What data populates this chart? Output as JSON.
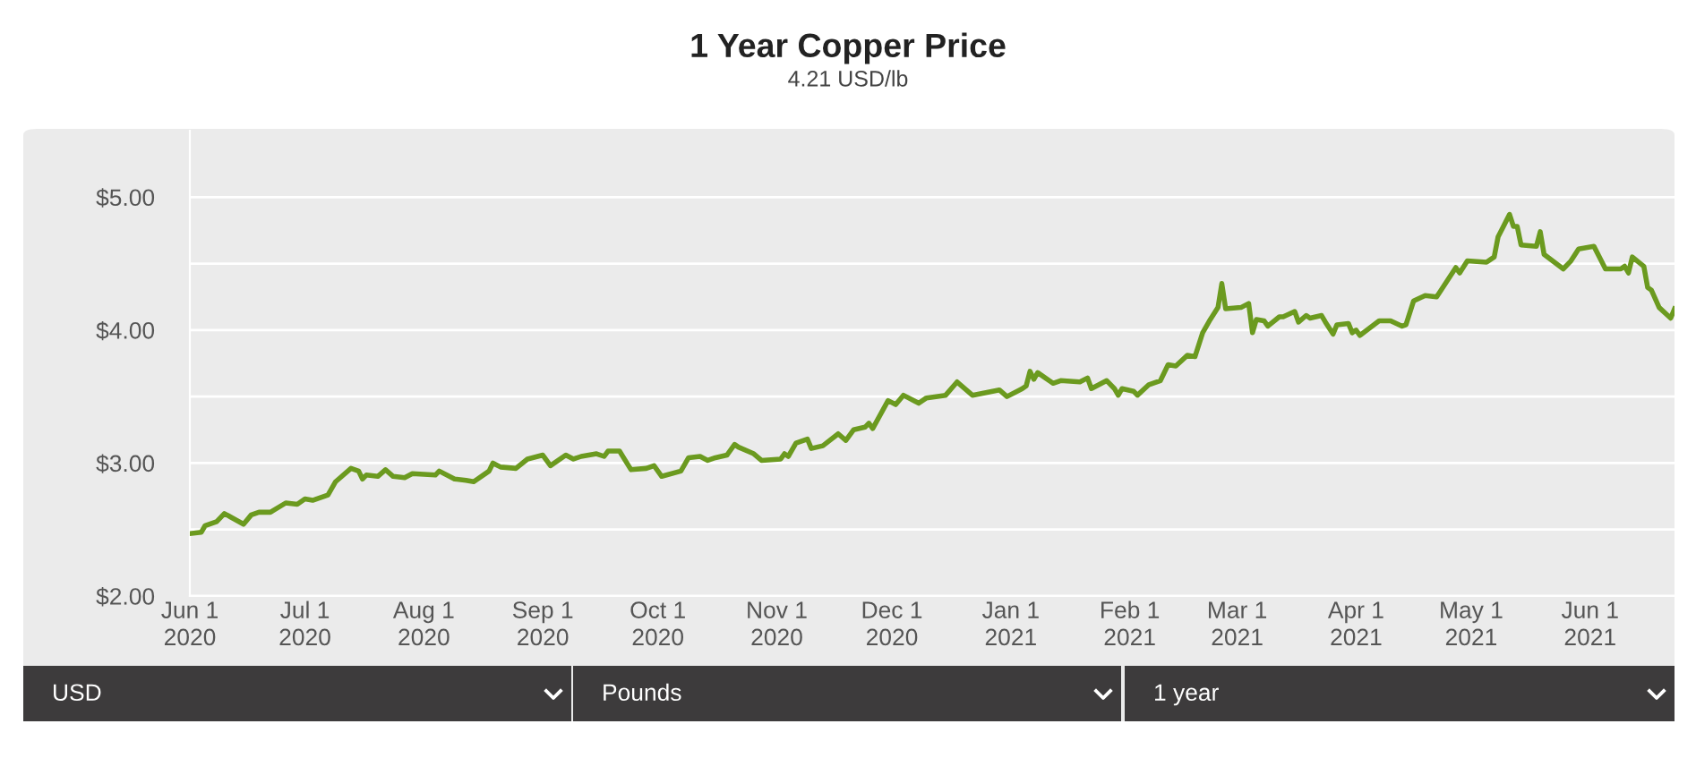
{
  "chart_data": {
    "type": "line",
    "title": "1 Year Copper Price",
    "subtitle": "4.21 USD/lb",
    "annotations": [
      "USD",
      "Pounds",
      "1 year"
    ],
    "x": [
      "2020-06-01",
      "2020-06-04",
      "2020-06-05",
      "2020-06-08",
      "2020-06-10",
      "2020-06-15",
      "2020-06-17",
      "2020-06-19",
      "2020-06-22",
      "2020-06-26",
      "2020-06-29",
      "2020-07-01",
      "2020-07-03",
      "2020-07-07",
      "2020-07-09",
      "2020-07-13",
      "2020-07-15",
      "2020-07-16",
      "2020-07-17",
      "2020-07-20",
      "2020-07-22",
      "2020-07-24",
      "2020-07-27",
      "2020-07-29",
      "2020-08-04",
      "2020-08-05",
      "2020-08-09",
      "2020-08-12",
      "2020-08-14",
      "2020-08-18",
      "2020-08-19",
      "2020-08-21",
      "2020-08-25",
      "2020-08-28",
      "2020-09-01",
      "2020-09-03",
      "2020-09-07",
      "2020-09-09",
      "2020-09-11",
      "2020-09-15",
      "2020-09-17",
      "2020-09-18",
      "2020-09-21",
      "2020-09-24",
      "2020-09-28",
      "2020-09-30",
      "2020-10-02",
      "2020-10-07",
      "2020-10-09",
      "2020-10-12",
      "2020-10-14",
      "2020-10-16",
      "2020-10-19",
      "2020-10-21",
      "2020-10-22",
      "2020-10-26",
      "2020-10-28",
      "2020-11-02",
      "2020-11-03",
      "2020-11-04",
      "2020-11-06",
      "2020-11-09",
      "2020-11-10",
      "2020-11-13",
      "2020-11-17",
      "2020-11-19",
      "2020-11-21",
      "2020-11-24",
      "2020-11-25",
      "2020-11-26",
      "2020-11-30",
      "2020-12-02",
      "2020-12-04",
      "2020-12-08",
      "2020-12-10",
      "2020-12-15",
      "2020-12-18",
      "2020-12-22",
      "2020-12-29",
      "2020-12-31",
      "2021-01-04",
      "2021-01-05",
      "2021-01-06",
      "2021-01-07",
      "2021-01-08",
      "2021-01-12",
      "2021-01-14",
      "2021-01-19",
      "2021-01-21",
      "2021-01-22",
      "2021-01-26",
      "2021-01-28",
      "2021-01-29",
      "2021-01-30",
      "2021-02-02",
      "2021-02-03",
      "2021-02-06",
      "2021-02-09",
      "2021-02-11",
      "2021-02-13",
      "2021-02-16",
      "2021-02-18",
      "2021-02-20",
      "2021-02-22",
      "2021-02-24",
      "2021-02-25",
      "2021-02-26",
      "2021-03-02",
      "2021-03-04",
      "2021-03-05",
      "2021-03-06",
      "2021-03-08",
      "2021-03-09",
      "2021-03-12",
      "2021-03-13",
      "2021-03-16",
      "2021-03-17",
      "2021-03-19",
      "2021-03-20",
      "2021-03-23",
      "2021-03-24",
      "2021-03-26",
      "2021-03-27",
      "2021-03-30",
      "2021-03-31",
      "2021-04-01",
      "2021-04-02",
      "2021-04-07",
      "2021-04-10",
      "2021-04-13",
      "2021-04-14",
      "2021-04-16",
      "2021-04-19",
      "2021-04-22",
      "2021-04-27",
      "2021-04-28",
      "2021-04-30",
      "2021-05-05",
      "2021-05-07",
      "2021-05-08",
      "2021-05-11",
      "2021-05-12",
      "2021-05-13",
      "2021-05-14",
      "2021-05-18",
      "2021-05-19",
      "2021-05-20",
      "2021-05-25",
      "2021-05-27",
      "2021-05-29",
      "2021-06-02",
      "2021-06-05",
      "2021-06-09",
      "2021-06-10",
      "2021-06-11",
      "2021-06-12",
      "2021-06-15",
      "2021-06-16",
      "2021-06-17",
      "2021-06-19",
      "2021-06-22",
      "2021-06-23"
    ],
    "series": [
      {
        "color": "#6b9a1f",
        "values": [
          2.47,
          2.48,
          2.53,
          2.56,
          2.62,
          2.54,
          2.61,
          2.63,
          2.63,
          2.7,
          2.69,
          2.73,
          2.72,
          2.76,
          2.86,
          2.96,
          2.94,
          2.88,
          2.91,
          2.9,
          2.95,
          2.9,
          2.89,
          2.92,
          2.91,
          2.94,
          2.88,
          2.87,
          2.86,
          2.94,
          3.0,
          2.97,
          2.96,
          3.03,
          3.06,
          2.98,
          3.06,
          3.03,
          3.05,
          3.07,
          3.05,
          3.09,
          3.09,
          2.95,
          2.96,
          2.98,
          2.9,
          2.94,
          3.04,
          3.05,
          3.02,
          3.04,
          3.06,
          3.14,
          3.12,
          3.07,
          3.02,
          3.03,
          3.07,
          3.05,
          3.15,
          3.18,
          3.11,
          3.13,
          3.22,
          3.17,
          3.25,
          3.27,
          3.3,
          3.26,
          3.47,
          3.44,
          3.51,
          3.45,
          3.49,
          3.51,
          3.61,
          3.51,
          3.55,
          3.5,
          3.56,
          3.58,
          3.69,
          3.63,
          3.68,
          3.6,
          3.62,
          3.61,
          3.64,
          3.56,
          3.62,
          3.56,
          3.51,
          3.56,
          3.54,
          3.51,
          3.59,
          3.62,
          3.74,
          3.73,
          3.81,
          3.8,
          3.98,
          4.08,
          4.17,
          4.35,
          4.16,
          4.17,
          4.2,
          3.98,
          4.08,
          4.07,
          4.03,
          4.1,
          4.1,
          4.14,
          4.06,
          4.11,
          4.09,
          4.11,
          4.06,
          3.97,
          4.04,
          4.05,
          3.98,
          4.0,
          3.96,
          4.07,
          4.07,
          4.03,
          4.04,
          4.22,
          4.26,
          4.25,
          4.47,
          4.43,
          4.52,
          4.51,
          4.55,
          4.7,
          4.87,
          4.78,
          4.78,
          4.64,
          4.63,
          4.74,
          4.57,
          4.46,
          4.52,
          4.61,
          4.63,
          4.46,
          4.46,
          4.48,
          4.43,
          4.55,
          4.48,
          4.32,
          4.3,
          4.17,
          4.09,
          4.16
        ]
      }
    ],
    "xlim": [
      "2020-06-01",
      "2021-06-23"
    ],
    "xticks": [
      {
        "value": "2020-06-01",
        "label": "Jun 1\n2020"
      },
      {
        "value": "2020-07-01",
        "label": "Jul 1\n2020"
      },
      {
        "value": "2020-08-01",
        "label": "Aug 1\n2020"
      },
      {
        "value": "2020-09-01",
        "label": "Sep 1\n2020"
      },
      {
        "value": "2020-10-01",
        "label": "Oct 1\n2020"
      },
      {
        "value": "2020-11-01",
        "label": "Nov 1\n2020"
      },
      {
        "value": "2020-12-01",
        "label": "Dec 1\n2020"
      },
      {
        "value": "2021-01-01",
        "label": "Jan 1\n2021"
      },
      {
        "value": "2021-02-01",
        "label": "Feb 1\n2021"
      },
      {
        "value": "2021-03-01",
        "label": "Mar 1\n2021"
      },
      {
        "value": "2021-04-01",
        "label": "Apr 1\n2021"
      },
      {
        "value": "2021-05-01",
        "label": "May 1\n2021"
      },
      {
        "value": "2021-06-01",
        "label": "Jun 1\n2021"
      }
    ],
    "ylim": [
      2,
      5.5
    ],
    "yticks": [
      {
        "value": 2,
        "label": "$2.00"
      },
      {
        "value": 2.5,
        "label": null
      },
      {
        "value": 3,
        "label": "$3.00"
      },
      {
        "value": 3.5,
        "label": null
      },
      {
        "value": 4,
        "label": "$4.00"
      },
      {
        "value": 4.5,
        "label": null
      },
      {
        "value": 5,
        "label": "$5.00"
      }
    ],
    "grid": "y",
    "marker": "none",
    "line_style": "solid"
  }
}
